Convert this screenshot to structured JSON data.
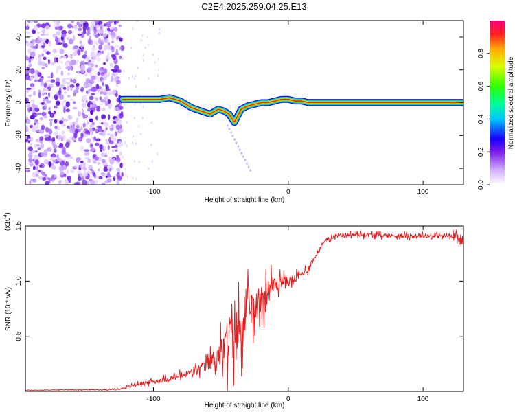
{
  "title": "C2E4.2025.259.04.25.E13",
  "colors": {
    "snr_line": "#e02020",
    "axis": "#000000",
    "spec_low": "#b088ff",
    "spec_mid": "#6a1ae0"
  },
  "chart_data": [
    {
      "type": "heatmap",
      "name": "spectrogram",
      "xlabel": "Height of straight line (km)",
      "ylabel": "Frequency (Hz)",
      "xlim": [
        -195,
        130
      ],
      "ylim": [
        -50,
        50
      ],
      "x_ticks": [
        -100,
        0,
        100
      ],
      "x_tick_labels": [
        "-100",
        "0",
        "100"
      ],
      "y_ticks": [
        -40,
        -20,
        0,
        20,
        40
      ],
      "y_tick_labels": [
        "-40",
        "-20",
        "0",
        "20",
        "40"
      ],
      "noise_region_x": [
        -195,
        -123
      ],
      "carrier_line": {
        "x": [
          -123,
          -115,
          -105,
          -95,
          -88,
          -80,
          -72,
          -65,
          -58,
          -52,
          -48,
          -44,
          -40,
          -35,
          -30,
          -25,
          -20,
          -15,
          -10,
          -5,
          0,
          5,
          10,
          15,
          130
        ],
        "freq_hz": [
          2,
          2,
          2,
          2,
          3,
          1,
          -3,
          -5,
          -7,
          -4,
          -5,
          -7,
          -12,
          -4,
          -2,
          -1,
          0,
          0,
          1,
          2,
          2,
          1,
          1,
          0,
          0
        ]
      },
      "colorbar": {
        "label": "Normalized spectral amplitude",
        "range": [
          0,
          1
        ],
        "ticks": [
          0,
          0.2,
          0.4,
          0.6,
          0.8
        ],
        "tick_labels": [
          "0.0",
          "0.2",
          "0.4",
          "0.6",
          "0.8"
        ]
      }
    },
    {
      "type": "line",
      "name": "snr",
      "xlabel": "Height of straight line (km)",
      "ylabel": "SNR (10 * v/v)",
      "scale_label": "(x10",
      "scale_exponent": "4",
      "xlim": [
        -195,
        130
      ],
      "ylim": [
        0,
        1.5
      ],
      "x_ticks": [
        -100,
        0,
        100
      ],
      "x_tick_labels": [
        "-100",
        "0",
        "100"
      ],
      "y_ticks": [
        0.5,
        1.0,
        1.5
      ],
      "y_tick_labels": [
        "0.5",
        "1.0",
        "1.5"
      ],
      "series": [
        {
          "name": "SNR",
          "x": [
            -195,
            -180,
            -160,
            -140,
            -125,
            -120,
            -110,
            -100,
            -90,
            -80,
            -70,
            -60,
            -55,
            -50,
            -45,
            -42,
            -40,
            -38,
            -35,
            -33,
            -30,
            -28,
            -25,
            -22,
            -20,
            -18,
            -15,
            -12,
            -10,
            -8,
            -5,
            0,
            5,
            10,
            15,
            20,
            25,
            30,
            35,
            40,
            50,
            60,
            80,
            100,
            120,
            125,
            128,
            130
          ],
          "y": [
            0.01,
            0.012,
            0.015,
            0.015,
            0.02,
            0.04,
            0.07,
            0.09,
            0.11,
            0.14,
            0.18,
            0.24,
            0.3,
            0.35,
            0.42,
            0.55,
            0.6,
            0.52,
            0.62,
            0.7,
            0.66,
            0.78,
            0.72,
            0.82,
            0.88,
            0.85,
            0.92,
            0.95,
            0.98,
            0.97,
            1.0,
            1.0,
            1.02,
            1.06,
            1.12,
            1.22,
            1.33,
            1.39,
            1.41,
            1.42,
            1.42,
            1.42,
            1.41,
            1.41,
            1.41,
            1.39,
            1.37,
            1.36
          ],
          "spread": [
            0.005,
            0.005,
            0.006,
            0.008,
            0.01,
            0.02,
            0.03,
            0.04,
            0.05,
            0.06,
            0.08,
            0.12,
            0.2,
            0.3,
            0.45,
            0.6,
            0.6,
            0.55,
            0.5,
            0.5,
            0.45,
            0.4,
            0.35,
            0.3,
            0.3,
            0.28,
            0.25,
            0.2,
            0.18,
            0.15,
            0.12,
            0.1,
            0.08,
            0.07,
            0.06,
            0.05,
            0.04,
            0.04,
            0.04,
            0.04,
            0.04,
            0.04,
            0.04,
            0.04,
            0.05,
            0.08,
            0.1,
            0.1
          ]
        }
      ]
    }
  ]
}
